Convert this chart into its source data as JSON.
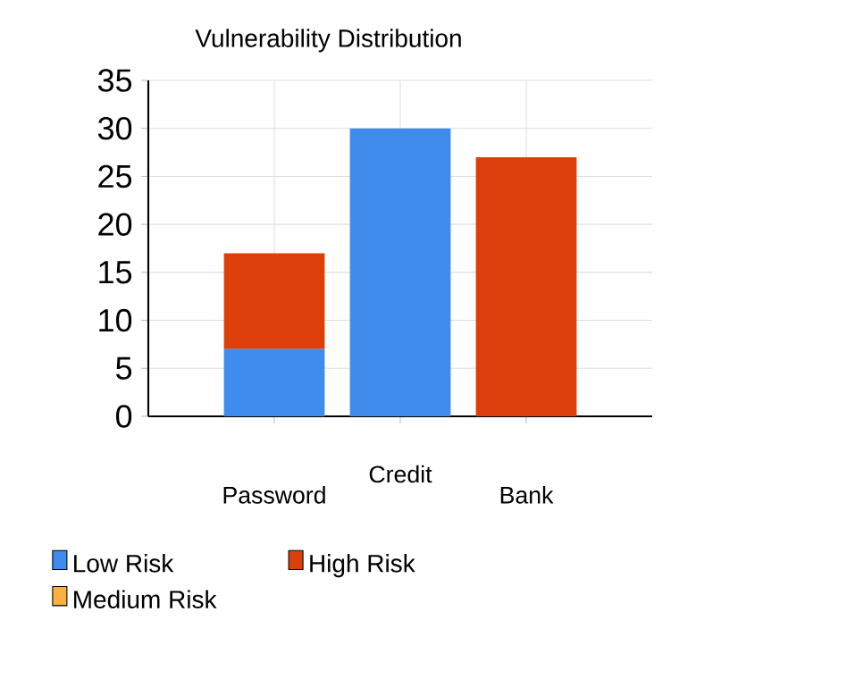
{
  "chart_data": {
    "type": "bar",
    "title": "Vulnerability Distribution",
    "categories": [
      "Password",
      "Credit",
      "Bank"
    ],
    "series": [
      {
        "name": "Low Risk",
        "color": "#3f8ced",
        "values": [
          7,
          30,
          0
        ]
      },
      {
        "name": "High Risk",
        "color": "#dd3f0b",
        "values": [
          10,
          0,
          27
        ]
      },
      {
        "name": "Medium Risk",
        "color": "#fbb040",
        "values": [
          0,
          0,
          0
        ]
      }
    ],
    "stacked": true,
    "ylim": [
      0,
      35
    ],
    "yticks": [
      0,
      5,
      10,
      15,
      20,
      25,
      30,
      35
    ],
    "grid": true,
    "legend": "bottom left"
  }
}
